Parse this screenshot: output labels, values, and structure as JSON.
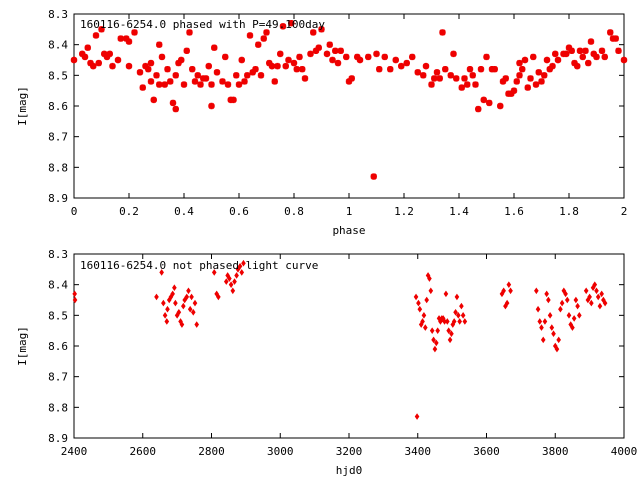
{
  "chart_data": [
    {
      "type": "scatter",
      "title": "160116-6254.0 phased with P=49.100day",
      "xlabel": "phase",
      "ylabel": "I[mag]",
      "xlim": [
        0,
        2
      ],
      "ylim": [
        8.3,
        8.9
      ],
      "y_inverted": true,
      "grid": false,
      "marker": "star",
      "color": "#ee0000",
      "xticks": [
        "0",
        "0.2",
        "0.4",
        "0.6",
        "0.8",
        "1",
        "1.2",
        "1.4",
        "1.6",
        "1.8",
        "2"
      ],
      "yticks": [
        "8.3",
        "8.4",
        "8.5",
        "8.6",
        "8.7",
        "8.8",
        "8.9"
      ],
      "points": [
        [
          0.0,
          8.45
        ],
        [
          0.03,
          8.43
        ],
        [
          0.04,
          8.44
        ],
        [
          0.05,
          8.41
        ],
        [
          0.06,
          8.46
        ],
        [
          0.07,
          8.47
        ],
        [
          0.08,
          8.37
        ],
        [
          0.09,
          8.46
        ],
        [
          0.1,
          8.35
        ],
        [
          0.11,
          8.43
        ],
        [
          0.12,
          8.44
        ],
        [
          0.13,
          8.43
        ],
        [
          0.14,
          8.47
        ],
        [
          0.16,
          8.45
        ],
        [
          0.17,
          8.38
        ],
        [
          0.19,
          8.38
        ],
        [
          0.2,
          8.47
        ],
        [
          0.2,
          8.39
        ],
        [
          0.22,
          8.36
        ],
        [
          0.24,
          8.49
        ],
        [
          0.25,
          8.54
        ],
        [
          0.26,
          8.47
        ],
        [
          0.27,
          8.48
        ],
        [
          0.28,
          8.46
        ],
        [
          0.28,
          8.52
        ],
        [
          0.29,
          8.58
        ],
        [
          0.3,
          8.5
        ],
        [
          0.31,
          8.4
        ],
        [
          0.31,
          8.53
        ],
        [
          0.32,
          8.44
        ],
        [
          0.33,
          8.53
        ],
        [
          0.34,
          8.48
        ],
        [
          0.35,
          8.52
        ],
        [
          0.36,
          8.59
        ],
        [
          0.37,
          8.5
        ],
        [
          0.37,
          8.61
        ],
        [
          0.38,
          8.46
        ],
        [
          0.39,
          8.45
        ],
        [
          0.4,
          8.53
        ],
        [
          0.41,
          8.42
        ],
        [
          0.42,
          8.36
        ],
        [
          0.43,
          8.48
        ],
        [
          0.44,
          8.52
        ],
        [
          0.45,
          8.5
        ],
        [
          0.46,
          8.53
        ],
        [
          0.47,
          8.51
        ],
        [
          0.48,
          8.51
        ],
        [
          0.49,
          8.47
        ],
        [
          0.5,
          8.6
        ],
        [
          0.5,
          8.53
        ],
        [
          0.51,
          8.41
        ],
        [
          0.52,
          8.49
        ],
        [
          0.54,
          8.52
        ],
        [
          0.55,
          8.44
        ],
        [
          0.56,
          8.53
        ],
        [
          0.57,
          8.58
        ],
        [
          0.58,
          8.58
        ],
        [
          0.59,
          8.5
        ],
        [
          0.6,
          8.53
        ],
        [
          0.61,
          8.45
        ],
        [
          0.62,
          8.52
        ],
        [
          0.63,
          8.5
        ],
        [
          0.64,
          8.37
        ],
        [
          0.65,
          8.49
        ],
        [
          0.66,
          8.48
        ],
        [
          0.67,
          8.4
        ],
        [
          0.68,
          8.5
        ],
        [
          0.69,
          8.38
        ],
        [
          0.7,
          8.36
        ],
        [
          0.71,
          8.46
        ],
        [
          0.72,
          8.47
        ],
        [
          0.73,
          8.52
        ],
        [
          0.74,
          8.47
        ],
        [
          0.75,
          8.43
        ],
        [
          0.76,
          8.34
        ],
        [
          0.77,
          8.47
        ],
        [
          0.78,
          8.45
        ],
        [
          0.79,
          8.33
        ],
        [
          0.8,
          8.46
        ],
        [
          0.81,
          8.48
        ],
        [
          0.82,
          8.44
        ],
        [
          0.83,
          8.48
        ],
        [
          0.84,
          8.51
        ],
        [
          0.86,
          8.43
        ],
        [
          0.87,
          8.36
        ],
        [
          0.88,
          8.42
        ],
        [
          0.89,
          8.41
        ],
        [
          0.9,
          8.35
        ],
        [
          0.92,
          8.43
        ],
        [
          0.93,
          8.4
        ],
        [
          0.94,
          8.45
        ],
        [
          0.95,
          8.42
        ],
        [
          0.96,
          8.46
        ],
        [
          0.97,
          8.42
        ],
        [
          0.99,
          8.44
        ],
        [
          1.0,
          8.52
        ],
        [
          1.01,
          8.51
        ],
        [
          1.03,
          8.44
        ],
        [
          1.04,
          8.45
        ],
        [
          1.07,
          8.44
        ],
        [
          1.09,
          8.83
        ],
        [
          1.1,
          8.43
        ],
        [
          1.11,
          8.48
        ],
        [
          1.13,
          8.44
        ],
        [
          1.15,
          8.48
        ],
        [
          1.17,
          8.45
        ],
        [
          1.19,
          8.47
        ],
        [
          1.21,
          8.46
        ],
        [
          1.23,
          8.44
        ],
        [
          1.25,
          8.49
        ],
        [
          1.27,
          8.5
        ],
        [
          1.28,
          8.47
        ],
        [
          1.3,
          8.53
        ],
        [
          1.31,
          8.51
        ],
        [
          1.32,
          8.49
        ],
        [
          1.33,
          8.51
        ],
        [
          1.34,
          8.36
        ],
        [
          1.35,
          8.48
        ],
        [
          1.37,
          8.5
        ],
        [
          1.38,
          8.43
        ],
        [
          1.39,
          8.51
        ],
        [
          1.41,
          8.54
        ],
        [
          1.42,
          8.51
        ],
        [
          1.43,
          8.53
        ],
        [
          1.44,
          8.48
        ],
        [
          1.45,
          8.5
        ],
        [
          1.46,
          8.53
        ],
        [
          1.47,
          8.61
        ],
        [
          1.48,
          8.48
        ],
        [
          1.49,
          8.58
        ],
        [
          1.5,
          8.44
        ],
        [
          1.51,
          8.59
        ],
        [
          1.52,
          8.48
        ],
        [
          1.53,
          8.48
        ],
        [
          1.55,
          8.6
        ],
        [
          1.56,
          8.52
        ],
        [
          1.57,
          8.51
        ],
        [
          1.58,
          8.56
        ],
        [
          1.59,
          8.56
        ],
        [
          1.6,
          8.55
        ],
        [
          1.61,
          8.52
        ],
        [
          1.62,
          8.46
        ],
        [
          1.62,
          8.5
        ],
        [
          1.63,
          8.48
        ],
        [
          1.64,
          8.45
        ],
        [
          1.65,
          8.54
        ],
        [
          1.66,
          8.51
        ],
        [
          1.67,
          8.44
        ],
        [
          1.68,
          8.53
        ],
        [
          1.69,
          8.49
        ],
        [
          1.7,
          8.52
        ],
        [
          1.71,
          8.5
        ],
        [
          1.72,
          8.45
        ],
        [
          1.73,
          8.48
        ],
        [
          1.74,
          8.47
        ],
        [
          1.75,
          8.43
        ],
        [
          1.76,
          8.45
        ],
        [
          1.78,
          8.43
        ],
        [
          1.79,
          8.43
        ],
        [
          1.8,
          8.41
        ],
        [
          1.81,
          8.42
        ],
        [
          1.82,
          8.46
        ],
        [
          1.83,
          8.47
        ],
        [
          1.84,
          8.42
        ],
        [
          1.85,
          8.44
        ],
        [
          1.86,
          8.42
        ],
        [
          1.87,
          8.46
        ],
        [
          1.88,
          8.39
        ],
        [
          1.89,
          8.43
        ],
        [
          1.9,
          8.44
        ],
        [
          1.92,
          8.42
        ],
        [
          1.93,
          8.44
        ],
        [
          1.95,
          8.36
        ],
        [
          1.96,
          8.38
        ],
        [
          1.97,
          8.38
        ],
        [
          1.98,
          8.42
        ],
        [
          2.0,
          8.45
        ]
      ]
    },
    {
      "type": "scatter",
      "title": "160116-6254.0 not phased light curve",
      "xlabel": "hjd0",
      "ylabel": "I[mag]",
      "xlim": [
        2400,
        4000
      ],
      "ylim": [
        8.3,
        8.9
      ],
      "y_inverted": true,
      "grid": false,
      "marker": "diamond",
      "color": "#ee0000",
      "xticks": [
        "2400",
        "2600",
        "2800",
        "3000",
        "3200",
        "3400",
        "3600",
        "3800",
        "4000"
      ],
      "yticks": [
        "8.3",
        "8.4",
        "8.5",
        "8.6",
        "8.7",
        "8.8",
        "8.9"
      ],
      "points": [
        [
          2402,
          8.43
        ],
        [
          2403,
          8.45
        ],
        [
          2640,
          8.44
        ],
        [
          2655,
          8.36
        ],
        [
          2660,
          8.46
        ],
        [
          2665,
          8.5
        ],
        [
          2670,
          8.52
        ],
        [
          2672,
          8.48
        ],
        [
          2677,
          8.45
        ],
        [
          2682,
          8.44
        ],
        [
          2687,
          8.43
        ],
        [
          2692,
          8.41
        ],
        [
          2695,
          8.46
        ],
        [
          2700,
          8.5
        ],
        [
          2705,
          8.49
        ],
        [
          2710,
          8.52
        ],
        [
          2714,
          8.53
        ],
        [
          2718,
          8.47
        ],
        [
          2722,
          8.45
        ],
        [
          2728,
          8.44
        ],
        [
          2733,
          8.42
        ],
        [
          2738,
          8.48
        ],
        [
          2742,
          8.44
        ],
        [
          2747,
          8.49
        ],
        [
          2752,
          8.46
        ],
        [
          2757,
          8.53
        ],
        [
          2808,
          8.36
        ],
        [
          2815,
          8.43
        ],
        [
          2820,
          8.44
        ],
        [
          2843,
          8.39
        ],
        [
          2847,
          8.37
        ],
        [
          2852,
          8.38
        ],
        [
          2857,
          8.4
        ],
        [
          2862,
          8.42
        ],
        [
          2867,
          8.39
        ],
        [
          2873,
          8.37
        ],
        [
          2877,
          8.35
        ],
        [
          2883,
          8.34
        ],
        [
          2888,
          8.36
        ],
        [
          2893,
          8.33
        ],
        [
          3395,
          8.44
        ],
        [
          3398,
          8.83
        ],
        [
          3402,
          8.46
        ],
        [
          3406,
          8.48
        ],
        [
          3410,
          8.53
        ],
        [
          3414,
          8.52
        ],
        [
          3418,
          8.5
        ],
        [
          3422,
          8.54
        ],
        [
          3426,
          8.45
        ],
        [
          3430,
          8.37
        ],
        [
          3434,
          8.38
        ],
        [
          3438,
          8.42
        ],
        [
          3442,
          8.55
        ],
        [
          3446,
          8.58
        ],
        [
          3450,
          8.61
        ],
        [
          3454,
          8.59
        ],
        [
          3458,
          8.55
        ],
        [
          3462,
          8.51
        ],
        [
          3466,
          8.52
        ],
        [
          3470,
          8.51
        ],
        [
          3474,
          8.51
        ],
        [
          3478,
          8.52
        ],
        [
          3482,
          8.43
        ],
        [
          3486,
          8.52
        ],
        [
          3490,
          8.55
        ],
        [
          3494,
          8.58
        ],
        [
          3498,
          8.56
        ],
        [
          3502,
          8.53
        ],
        [
          3506,
          8.52
        ],
        [
          3510,
          8.49
        ],
        [
          3514,
          8.44
        ],
        [
          3518,
          8.5
        ],
        [
          3522,
          8.52
        ],
        [
          3527,
          8.47
        ],
        [
          3532,
          8.5
        ],
        [
          3537,
          8.52
        ],
        [
          3645,
          8.43
        ],
        [
          3650,
          8.42
        ],
        [
          3655,
          8.47
        ],
        [
          3660,
          8.46
        ],
        [
          3665,
          8.4
        ],
        [
          3670,
          8.42
        ],
        [
          3745,
          8.42
        ],
        [
          3750,
          8.48
        ],
        [
          3755,
          8.52
        ],
        [
          3760,
          8.54
        ],
        [
          3765,
          8.58
        ],
        [
          3770,
          8.52
        ],
        [
          3775,
          8.43
        ],
        [
          3780,
          8.45
        ],
        [
          3785,
          8.5
        ],
        [
          3790,
          8.54
        ],
        [
          3795,
          8.56
        ],
        [
          3800,
          8.6
        ],
        [
          3805,
          8.61
        ],
        [
          3810,
          8.58
        ],
        [
          3815,
          8.48
        ],
        [
          3820,
          8.46
        ],
        [
          3825,
          8.42
        ],
        [
          3830,
          8.43
        ],
        [
          3835,
          8.45
        ],
        [
          3840,
          8.5
        ],
        [
          3845,
          8.53
        ],
        [
          3850,
          8.54
        ],
        [
          3855,
          8.51
        ],
        [
          3860,
          8.45
        ],
        [
          3865,
          8.47
        ],
        [
          3870,
          8.5
        ],
        [
          3890,
          8.42
        ],
        [
          3895,
          8.45
        ],
        [
          3900,
          8.44
        ],
        [
          3905,
          8.46
        ],
        [
          3910,
          8.41
        ],
        [
          3915,
          8.4
        ],
        [
          3920,
          8.42
        ],
        [
          3925,
          8.44
        ],
        [
          3930,
          8.47
        ],
        [
          3935,
          8.43
        ],
        [
          3940,
          8.45
        ],
        [
          3945,
          8.46
        ]
      ]
    }
  ]
}
